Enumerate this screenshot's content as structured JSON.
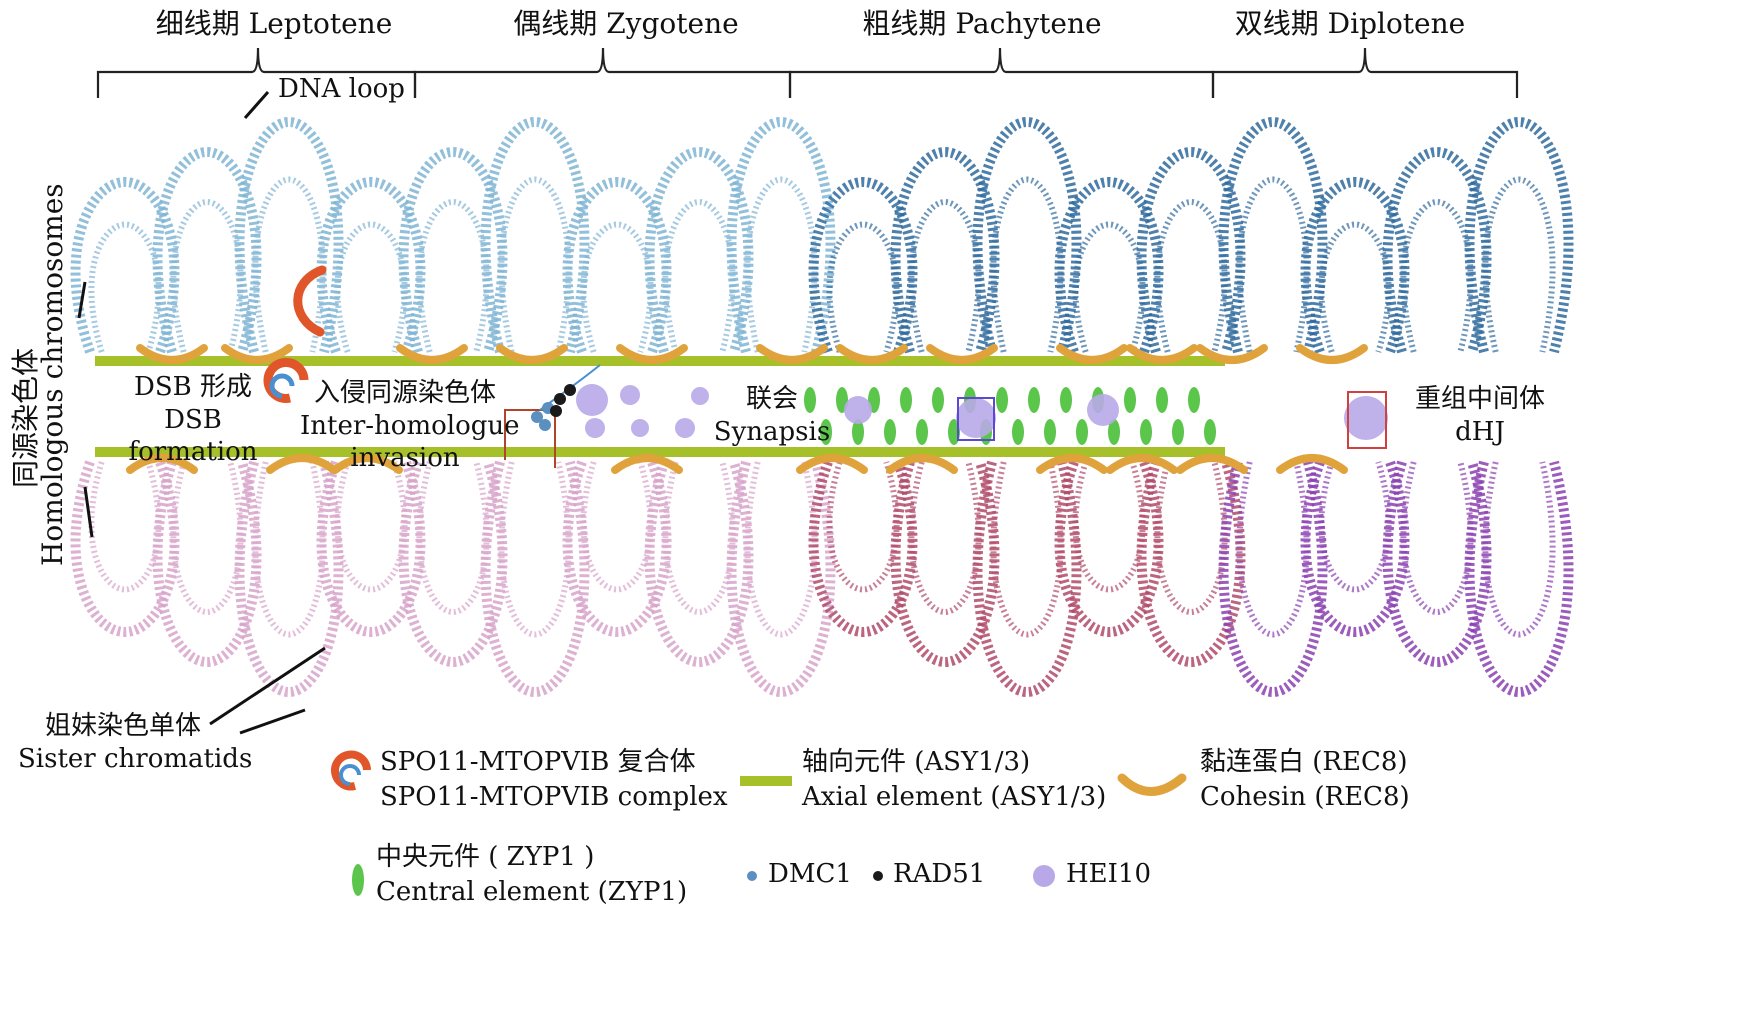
{
  "stages": [
    {
      "label": "细线期 Leptotene"
    },
    {
      "label": "偶线期 Zygotene"
    },
    {
      "label": "粗线期 Pachytene"
    },
    {
      "label": "双线期 Diplotene"
    }
  ],
  "side_labels": {
    "zh": "同源染色体",
    "en": "Homologous chromosomes"
  },
  "annotations": {
    "dna_loop": "DNA loop",
    "dsb_zh": "DSB 形成",
    "dsb_en1": "DSB",
    "dsb_en2": "formation",
    "invasion_zh": "入侵同源染色体",
    "invasion_en1": "Inter-homologue",
    "invasion_en2": "invasion",
    "synapsis_zh": "联会",
    "synapsis_en": "Synapsis",
    "dhj_zh": "重组中间体",
    "dhj_en": "dHJ",
    "sister_zh": "姐妹染色单体",
    "sister_en": "Sister chromatids"
  },
  "legend": {
    "spo11_zh": "SPO11-MTOPVIB 复合体",
    "spo11_en": "SPO11-MTOPVIB complex",
    "axial_zh": "轴向元件 (ASY1/3)",
    "axial_en": "Axial element (ASY1/3)",
    "cohesin_zh": "黏连蛋白 (REC8)",
    "cohesin_en": "Cohesin (REC8)",
    "central_zh": "中央元件 ( ZYP1 )",
    "central_en": "Central element (ZYP1)",
    "dmc1": "DMC1",
    "rad51": "RAD51",
    "hei10": "HEI10"
  },
  "colors": {
    "upper_chromatid_light": "#7fb4d4",
    "upper_chromatid_dark": "#2f6a9e",
    "lower_chromatid_light": "#d7a3c9",
    "lower_chromatid_dark": "#b04a6a",
    "lower_chromatid_purple": "#8a3fb0",
    "axial_element": "#a6c02a",
    "cohesin_fill": "#f6d79a",
    "cohesin_stroke": "#e0a33c",
    "central_element": "#5cc64c",
    "hei10": "#b8a8e8",
    "dmc1": "#5a8fc0",
    "rad51": "#1a1a1a",
    "spo11_red": "#e0562a",
    "spo11_blue": "#4a8fd0"
  }
}
